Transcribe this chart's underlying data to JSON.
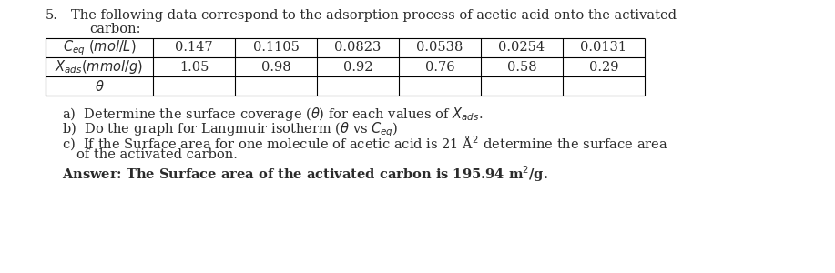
{
  "problem_number": "5.",
  "title_line1": "The following data correspond to the adsorption process of acetic acid onto the activated",
  "title_line2": "carbon:",
  "col_values_row1": [
    "0.147",
    "0.1105",
    "0.0823",
    "0.0538",
    "0.0254",
    "0.0131"
  ],
  "col_values_row2": [
    "1.05",
    "0.98",
    "0.92",
    "0.76",
    "0.58",
    "0.29"
  ],
  "item_a": "a)  Determine the surface coverage (θ) for each values of X",
  "item_a_sub": "ads",
  "item_a_end": ".",
  "item_b": "b)  Do the graph for Langmuir isotherm (θ vs C",
  "item_b_sub": "eq",
  "item_b_end": ")",
  "item_c": "c)  If the Surface area for one molecule of acetic acid is 21 Å",
  "item_c_sup": "2",
  "item_c_end": " determine the surface area",
  "item_c2": "     of the activated carbon.",
  "answer": "Answer: The Surface area of the activated carbon is 195.94 m",
  "answer_sup": "2",
  "answer_end": "/g.",
  "text_color": "#2b2b2b",
  "bg_color": "#ffffff",
  "table_line_color": "#000000",
  "font_size": 10.5
}
